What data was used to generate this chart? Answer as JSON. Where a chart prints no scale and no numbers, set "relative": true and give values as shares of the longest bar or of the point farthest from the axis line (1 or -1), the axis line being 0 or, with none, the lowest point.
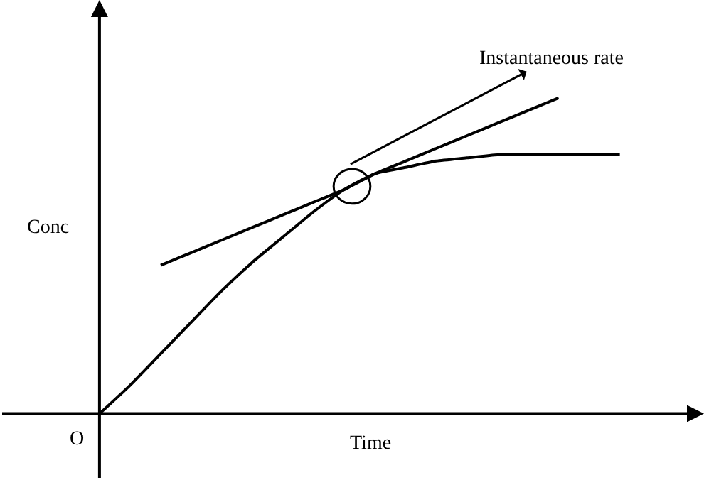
{
  "chart_data": {
    "type": "line",
    "relative": true,
    "xlabel": "Time",
    "ylabel": "Conc",
    "annotations": [
      "O",
      "Instantaneous rate"
    ],
    "categories": [
      null,
      null,
      null,
      null,
      null,
      null,
      null,
      null,
      null,
      null,
      null,
      null,
      null,
      null,
      null,
      null,
      null,
      null
    ],
    "series": [
      {
        "color": "#000000",
        "values": [
          0,
          0.09,
          0.19,
          0.29,
          0.39,
          0.48,
          0.56,
          0.64,
          0.71,
          0.76,
          0.78,
          0.8,
          0.81,
          0.82,
          0.82,
          0.82,
          0.82,
          0.82
        ]
      },
      {
        "color": "#000000",
        "values": [
          null,
          null,
          0.47,
          0.51,
          0.55,
          0.59,
          0.63,
          0.67,
          0.71,
          0.76,
          0.8,
          0.84,
          0.88,
          0.92,
          0.96,
          1.0,
          null,
          null
        ]
      }
    ]
  }
}
